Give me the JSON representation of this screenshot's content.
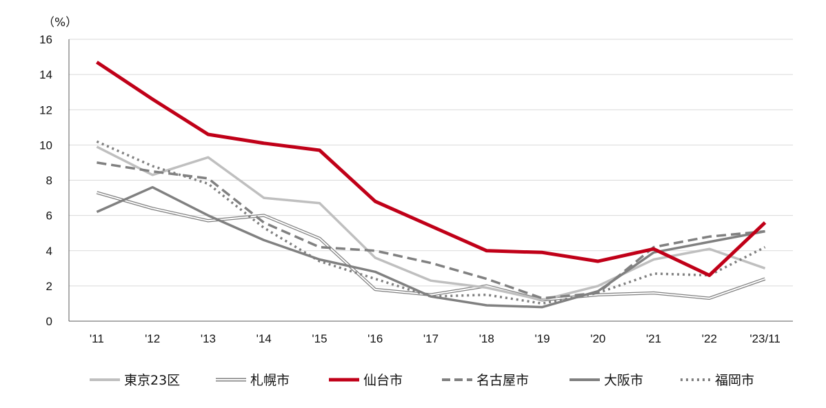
{
  "chart_data": {
    "type": "line",
    "unit_label": "（%）",
    "categories": [
      "'11",
      "'12",
      "'13",
      "'14",
      "'15",
      "'16",
      "'17",
      "'18",
      "'19",
      "'20",
      "'21",
      "'22",
      "'23/11"
    ],
    "ylim": [
      0,
      16
    ],
    "yticks": [
      0,
      2,
      4,
      6,
      8,
      10,
      12,
      14,
      16
    ],
    "grid": true,
    "legend_position": "bottom",
    "series": [
      {
        "name": "東京23区",
        "color": "#bfbfbf",
        "style": "solid",
        "values": [
          9.9,
          8.3,
          9.3,
          7.0,
          6.7,
          3.6,
          2.3,
          1.9,
          1.2,
          2.0,
          3.5,
          4.1,
          3.0
        ]
      },
      {
        "name": "札幌市",
        "color": "#7f7f7f",
        "style": "double",
        "values": [
          7.3,
          6.4,
          5.7,
          6.0,
          4.7,
          1.8,
          1.5,
          2.0,
          1.2,
          1.5,
          1.6,
          1.3,
          2.4
        ]
      },
      {
        "name": "仙台市",
        "color": "#c00018",
        "style": "thick",
        "values": [
          14.7,
          12.6,
          10.6,
          10.1,
          9.7,
          6.8,
          5.4,
          4.0,
          3.9,
          3.4,
          4.1,
          2.6,
          5.6
        ]
      },
      {
        "name": "名古屋市",
        "color": "#808080",
        "style": "dashed",
        "values": [
          9.0,
          8.5,
          8.1,
          5.6,
          4.2,
          4.0,
          3.3,
          2.4,
          1.3,
          1.6,
          4.2,
          4.8,
          5.1
        ]
      },
      {
        "name": "大阪市",
        "color": "#808080",
        "style": "solid",
        "values": [
          6.2,
          7.6,
          6.0,
          4.6,
          3.5,
          2.8,
          1.4,
          0.9,
          0.8,
          1.7,
          3.9,
          4.5,
          5.1
        ]
      },
      {
        "name": "福岡市",
        "color": "#808080",
        "style": "dotted",
        "values": [
          10.2,
          8.8,
          7.8,
          5.3,
          3.4,
          2.4,
          1.4,
          1.5,
          1.0,
          1.6,
          2.7,
          2.6,
          4.2
        ]
      }
    ]
  }
}
